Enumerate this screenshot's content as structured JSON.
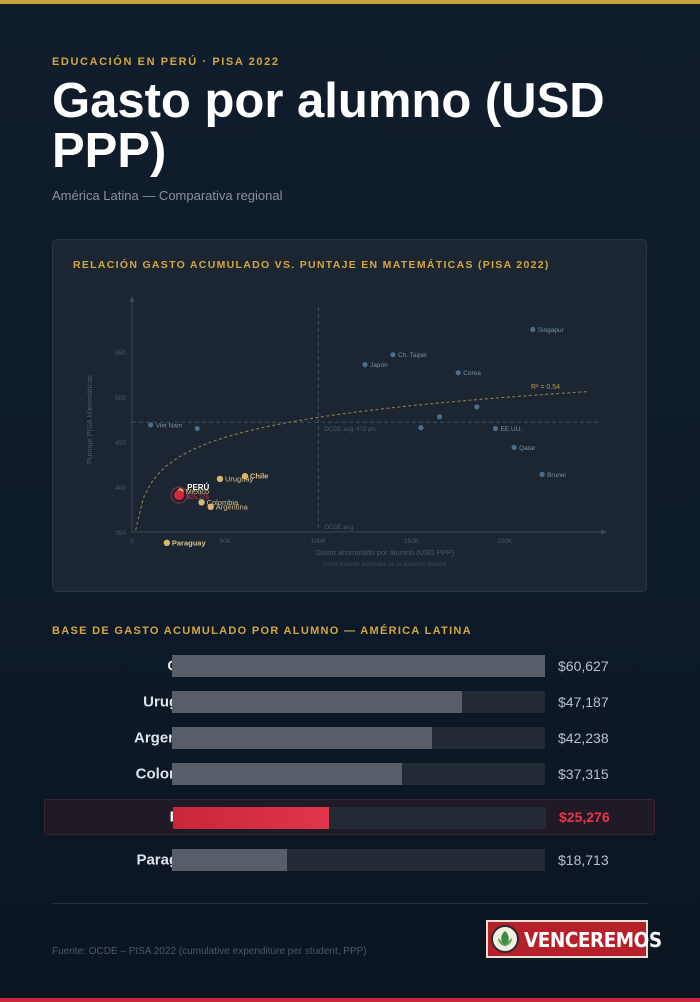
{
  "header": {
    "kicker": "EDUCACIÓN EN PERÚ · PISA 2022",
    "title": "Gasto por alumno (USD PPP)",
    "subtitle": "América Latina — Comparativa regional"
  },
  "colors": {
    "gold": "#d4a73e",
    "highlight_red": "#e0344a",
    "other_country_dot": "#4a6d8c",
    "latam_dot": "#d8b86a",
    "bar_gray": "#575e68",
    "background": "#0e1b2a"
  },
  "chart_data": [
    {
      "type": "scatter",
      "title": "RELACIÓN GASTO ACUMULADO VS. PUNTAJE EN MATEMÁTICAS (PISA 2022)",
      "xlabel": "Gasto acumulado por alumno (USD PPP)",
      "xlabel_note": "como fracción estimada de la duración escolar",
      "ylabel": "Puntaje PISA Matemáticas",
      "xlim": [
        0,
        250000
      ],
      "ylim": [
        350,
        600
      ],
      "x_ticks": [
        {
          "value": 0,
          "label": "0"
        },
        {
          "value": 50000,
          "label": "50K"
        },
        {
          "value": 100000,
          "label": "100K"
        },
        {
          "value": 150000,
          "label": "150K"
        },
        {
          "value": 200000,
          "label": "200K"
        }
      ],
      "y_ticks": [
        {
          "value": 350,
          "label": "350"
        },
        {
          "value": 400,
          "label": "400"
        },
        {
          "value": 450,
          "label": "450"
        },
        {
          "value": 500,
          "label": "500"
        },
        {
          "value": 550,
          "label": "550"
        }
      ],
      "reference_lines": {
        "horizontal": {
          "value": 472,
          "label": "OCDE avg: 472 pts"
        },
        "vertical": {
          "value": 100000,
          "label": "OCDE avg"
        }
      },
      "trend": {
        "label": "R² = 0.54"
      },
      "highlight": {
        "name": "PERÚ",
        "label": "$25,276",
        "x": 25276,
        "y": 391
      },
      "points": [
        {
          "name": "Singapur",
          "x": 215000,
          "y": 575,
          "group": "other",
          "label_side": "right"
        },
        {
          "name": "Ch. Taipei",
          "x": 140000,
          "y": 547,
          "group": "other",
          "label_side": "right"
        },
        {
          "name": "Corea",
          "x": 175000,
          "y": 527,
          "group": "other",
          "label_side": "right"
        },
        {
          "name": "Japón",
          "x": 125000,
          "y": 536,
          "group": "other",
          "label_side": "right"
        },
        {
          "name": "",
          "x": 185000,
          "y": 489,
          "group": "other",
          "label_side": "right"
        },
        {
          "name": "",
          "x": 165000,
          "y": 478,
          "group": "other",
          "label_side": "right"
        },
        {
          "name": "",
          "x": 155000,
          "y": 466,
          "group": "other",
          "label_side": "right"
        },
        {
          "name": "EE.UU.",
          "x": 195000,
          "y": 465,
          "group": "other",
          "label_side": "right"
        },
        {
          "name": "Viet Nam",
          "x": 10000,
          "y": 469,
          "group": "other",
          "label_side": "right"
        },
        {
          "name": "",
          "x": 35000,
          "y": 465,
          "group": "other",
          "label_side": "right"
        },
        {
          "name": "Qatar",
          "x": 205000,
          "y": 444,
          "group": "other",
          "label_side": "right"
        },
        {
          "name": "Brunei",
          "x": 220000,
          "y": 414,
          "group": "other",
          "label_side": "right"
        },
        {
          "name": "Uruguay",
          "x": 47187,
          "y": 409,
          "group": "latam",
          "label_side": "right"
        },
        {
          "name": "Chile",
          "x": 60627,
          "y": 412,
          "group": "latam",
          "label_side": "right",
          "bold": true
        },
        {
          "name": "Colombia",
          "x": 37315,
          "y": 383,
          "group": "latam",
          "label_side": "right"
        },
        {
          "name": "Argentina",
          "x": 42238,
          "y": 378,
          "group": "latam",
          "label_side": "right"
        },
        {
          "name": "México",
          "x": 26000,
          "y": 395,
          "group": "latam",
          "label_side": "right"
        },
        {
          "name": "Paraguay",
          "x": 18713,
          "y": 338,
          "group": "latam",
          "label_side": "right",
          "bold": true
        }
      ]
    },
    {
      "type": "bar",
      "title": "BASE DE GASTO ACUMULADO POR ALUMNO — AMÉRICA LATINA",
      "orientation": "horizontal",
      "xlim": [
        0,
        60627
      ],
      "categories": [
        "Chile",
        "Uruguay",
        "Argentina",
        "Colombia",
        "Perú",
        "Paraguay"
      ],
      "values": [
        60627,
        47187,
        42238,
        37315,
        25276,
        18713
      ],
      "value_labels": [
        "$60,627",
        "$47,187",
        "$42,238",
        "$37,315",
        "$25,276",
        "$18,713"
      ],
      "highlight": "Perú"
    }
  ],
  "footer": {
    "source": "Fuente: OCDE – PISA 2022 (cumulative expenditure per student, PPP)",
    "logo_text": "VENCEREMOS"
  }
}
